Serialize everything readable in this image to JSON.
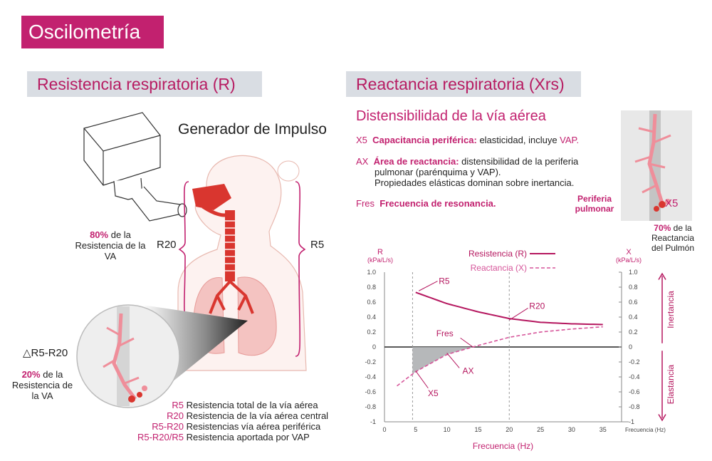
{
  "title": "Oscilometría",
  "left": {
    "section_title": "Resistencia respiratoria (R)",
    "generator_label": "Generador de Impulso",
    "r20": "R20",
    "r5": "R5",
    "pct80": "80%",
    "pct80_text": " de la Resistencia de la VA",
    "delta": "△R5-R20",
    "pct20": "20%",
    "pct20_text": " de la Resistencia de la VA",
    "legend": [
      {
        "key": "R5",
        "desc": "Resistencia total de la vía aérea"
      },
      {
        "key": "R20",
        "desc": "Resistencia de la vía aérea central"
      },
      {
        "key": "R5-R20",
        "desc": "Resistencias vía aérea periférica"
      },
      {
        "key": "R5-R20/R5",
        "desc": "Resistencia aportada por VAP"
      }
    ]
  },
  "right": {
    "section_title": "Reactancia respiratoria (Xrs)",
    "subtitle": "Distensibilidad de la vía aérea",
    "x5_key": "X5",
    "x5_bold": "Capacitancia periférica:",
    "x5_text": " elasticidad, incluye ",
    "x5_vap": "VAP.",
    "ax_key": "AX",
    "ax_bold": "Área de reactancia:",
    "ax_text1": " distensibilidad de la periferia",
    "ax_text2": "pulmonar (parénquima y VAP).",
    "ax_text3": "Propiedades elásticas dominan sobre inertancia.",
    "fres_key": "Fres",
    "fres_bold": "Frecuencia de resonancia.",
    "periferia_1": "Periferia",
    "periferia_2": "pulmonar",
    "x5_inset": "X5",
    "pct70": "70%",
    "pct70_text1": " de la",
    "pct70_text2": "Reactancia",
    "pct70_text3": "del Pulmón"
  },
  "chart_data": {
    "type": "line",
    "x": [
      5,
      10,
      15,
      20,
      25,
      30,
      35
    ],
    "series": [
      {
        "name": "Resistencia (R)",
        "x": [
          5,
          10,
          15,
          20,
          25,
          30,
          35
        ],
        "values": [
          0.73,
          0.58,
          0.47,
          0.38,
          0.33,
          0.31,
          0.3
        ]
      },
      {
        "name": "Reactancia (X)",
        "x": [
          2,
          5,
          10,
          15,
          20,
          25,
          30,
          35
        ],
        "values": [
          -0.52,
          -0.33,
          -0.1,
          0.02,
          0.13,
          0.2,
          0.24,
          0.27
        ]
      }
    ],
    "y_left_label": [
      "R",
      "(kPa/L/s)"
    ],
    "y_right_label": [
      "X",
      "(kPa/L/s)"
    ],
    "xlabel": "Frecuencia (Hz)",
    "x_axis_end_label": "Frecuencia (Hz)",
    "y_ticks": [
      "1.0",
      "0.8",
      "0.6",
      "0.4",
      "0.2",
      "0",
      "-0.2",
      "-0.4",
      "-0.6",
      "-0.8",
      "-1"
    ],
    "x_ticks": [
      "0",
      "5",
      "10",
      "15",
      "20",
      "25",
      "30",
      "35"
    ],
    "xlim": [
      0,
      38
    ],
    "ylim": [
      -1,
      1
    ],
    "annotations": [
      "R5",
      "R20",
      "Fres",
      "AX",
      "X5"
    ],
    "vertical_lines_x": [
      4.5,
      20
    ],
    "side_labels": {
      "top": "Inertancia",
      "bottom": "Elastancia"
    },
    "colors": {
      "resistance": "#b5175f",
      "reactance": "#d6559a",
      "area": "#a9abae"
    }
  }
}
